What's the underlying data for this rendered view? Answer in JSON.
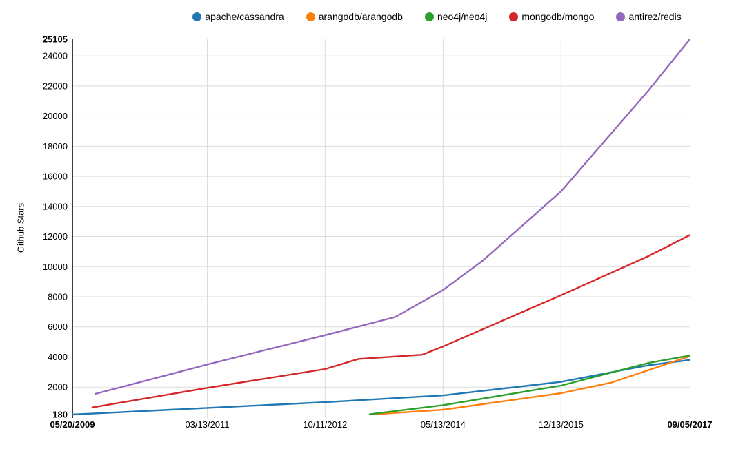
{
  "chart_data": {
    "type": "line",
    "title": "",
    "xlabel": "",
    "ylabel": "Github Stars",
    "x_type": "date",
    "x_range": [
      "05/20/2009",
      "09/05/2017"
    ],
    "ylim": [
      180,
      25105
    ],
    "y_ticks": [
      "180",
      "2000",
      "4000",
      "6000",
      "8000",
      "10000",
      "12000",
      "14000",
      "16000",
      "18000",
      "20000",
      "22000",
      "24000",
      "25105"
    ],
    "y_tick_values": [
      180,
      2000,
      4000,
      6000,
      8000,
      10000,
      12000,
      14000,
      16000,
      18000,
      20000,
      22000,
      24000,
      25105
    ],
    "y_ticks_bold": [
      "180",
      "25105"
    ],
    "x_ticks": [
      "05/20/2009",
      "03/13/2011",
      "10/11/2012",
      "05/13/2014",
      "12/13/2015",
      "09/05/2017"
    ],
    "x_ticks_bold": [
      "05/20/2009",
      "09/05/2017"
    ],
    "grid": true,
    "legend_position": "top-center",
    "series": [
      {
        "name": "apache/cassandra",
        "color": "#1f77b4",
        "points": [
          [
            "05/20/2009",
            180
          ],
          [
            "03/13/2011",
            620
          ],
          [
            "10/11/2012",
            1000
          ],
          [
            "05/13/2014",
            1450
          ],
          [
            "12/13/2015",
            2350
          ],
          [
            "02/14/2017",
            3450
          ],
          [
            "09/05/2017",
            3800
          ]
        ]
      },
      {
        "name": "arangodb/arangodb",
        "color": "#ff7f0e",
        "points": [
          [
            "05/18/2013",
            180
          ],
          [
            "05/13/2014",
            500
          ],
          [
            "12/13/2015",
            1600
          ],
          [
            "08/17/2016",
            2300
          ],
          [
            "09/05/2017",
            4050
          ]
        ]
      },
      {
        "name": "neo4j/neo4j",
        "color": "#2ca02c",
        "points": [
          [
            "05/18/2013",
            200
          ],
          [
            "05/13/2014",
            800
          ],
          [
            "12/13/2015",
            2100
          ],
          [
            "02/14/2017",
            3600
          ],
          [
            "09/05/2017",
            4100
          ]
        ]
      },
      {
        "name": "mongodb/mongo",
        "color": "#d62728",
        "points": [
          [
            "08/26/2009",
            650
          ],
          [
            "03/13/2011",
            1950
          ],
          [
            "10/11/2012",
            3200
          ],
          [
            "03/25/2013",
            3870
          ],
          [
            "01/30/2014",
            4150
          ],
          [
            "05/13/2014",
            4700
          ],
          [
            "12/13/2015",
            8100
          ],
          [
            "02/14/2017",
            10700
          ],
          [
            "09/05/2017",
            12100
          ]
        ]
      },
      {
        "name": "antirez/redis",
        "color": "#9467bd",
        "points": [
          [
            "09/09/2009",
            1550
          ],
          [
            "03/13/2011",
            3500
          ],
          [
            "10/11/2012",
            5450
          ],
          [
            "09/20/2013",
            6650
          ],
          [
            "05/13/2014",
            8450
          ],
          [
            "11/24/2014",
            10400
          ],
          [
            "12/13/2015",
            15000
          ],
          [
            "02/14/2017",
            21700
          ],
          [
            "09/05/2017",
            25105
          ]
        ]
      }
    ],
    "colors": {
      "axis": "#3c3c3c",
      "grid": "#dddddd",
      "tick_text": "#000000",
      "background": "#ffffff"
    }
  }
}
